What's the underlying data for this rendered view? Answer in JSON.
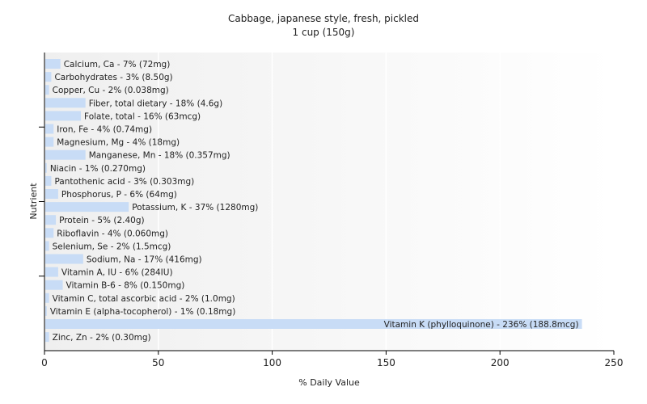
{
  "chart_data": {
    "type": "bar",
    "orientation": "horizontal",
    "title": "Cabbage, japanese style, fresh, pickled",
    "subtitle": "1 cup (150g)",
    "xlabel": "% Daily Value",
    "ylabel": "Nutrient",
    "xlim": [
      0,
      250
    ],
    "xticks": [
      0,
      50,
      100,
      150,
      200,
      250
    ],
    "grid": true,
    "bar_color": "#c8dcf6",
    "categories": [
      "Calcium, Ca - 7% (72mg)",
      "Carbohydrates - 3% (8.50g)",
      "Copper, Cu - 2% (0.038mg)",
      "Fiber, total dietary - 18% (4.6g)",
      "Folate, total - 16% (63mcg)",
      "Iron, Fe - 4% (0.74mg)",
      "Magnesium, Mg - 4% (18mg)",
      "Manganese, Mn - 18% (0.357mg)",
      "Niacin - 1% (0.270mg)",
      "Pantothenic acid - 3% (0.303mg)",
      "Phosphorus, P - 6% (64mg)",
      "Potassium, K - 37% (1280mg)",
      "Protein - 5% (2.40g)",
      "Riboflavin - 4% (0.060mg)",
      "Selenium, Se - 2% (1.5mcg)",
      "Sodium, Na - 17% (416mg)",
      "Vitamin A, IU - 6% (284IU)",
      "Vitamin B-6 - 8% (0.150mg)",
      "Vitamin C, total ascorbic acid - 2% (1.0mg)",
      "Vitamin E (alpha-tocopherol) - 1% (0.18mg)",
      "Vitamin K (phylloquinone) - 236% (188.8mcg)",
      "Zinc, Zn - 2% (0.30mg)"
    ],
    "values": [
      7,
      3,
      2,
      18,
      16,
      4,
      4,
      18,
      1,
      3,
      6,
      37,
      5,
      4,
      2,
      17,
      6,
      8,
      2,
      1,
      236,
      2
    ]
  }
}
